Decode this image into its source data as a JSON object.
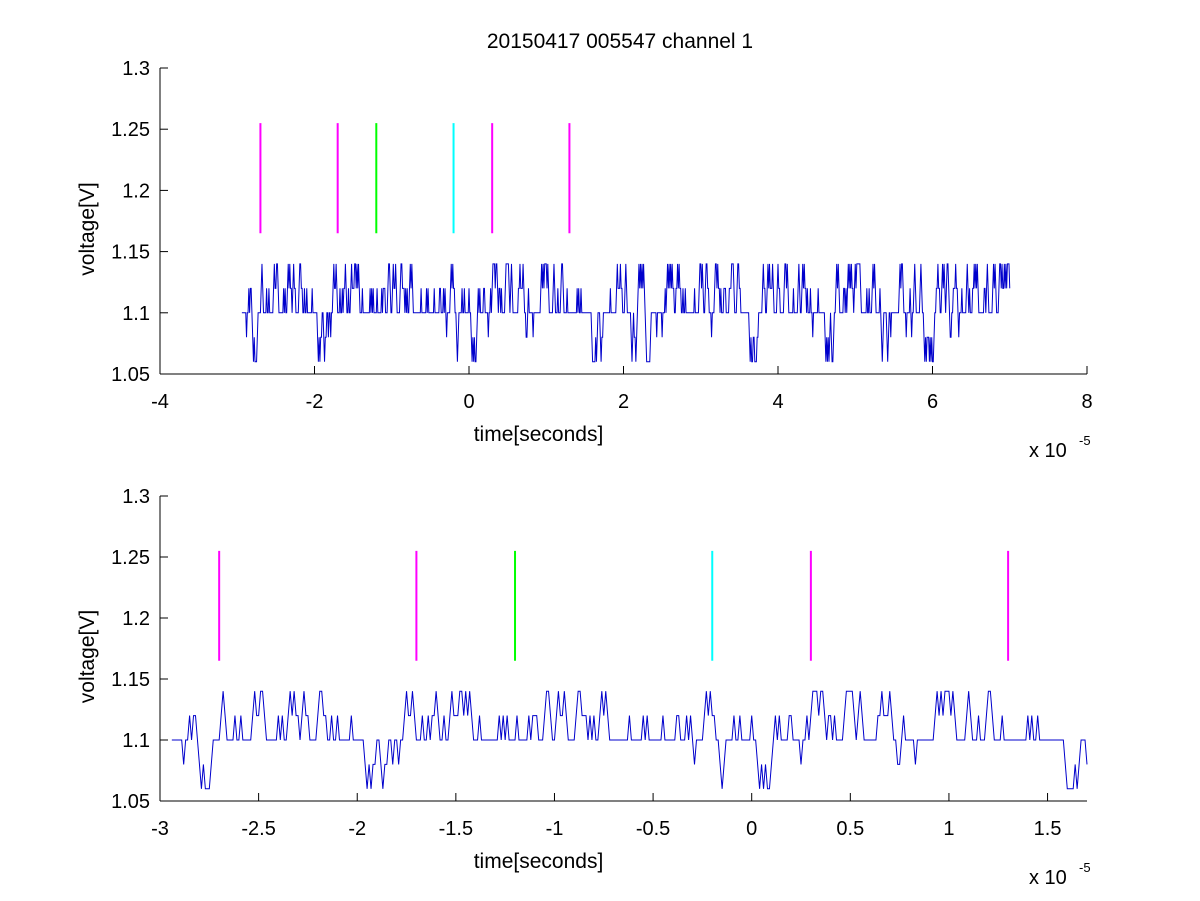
{
  "figure": {
    "title": "20150417 005547 channel 1"
  },
  "chart_data": [
    {
      "type": "line",
      "title": "20150417 005547 channel 1",
      "xlabel": "time[seconds]",
      "ylabel": "voltage[V]",
      "x_exponent_label": "x 10",
      "x_exponent_power": "-5",
      "xlim": [
        -4,
        8
      ],
      "ylim": [
        1.05,
        1.3
      ],
      "xticks": [
        -4,
        -2,
        0,
        2,
        4,
        6,
        8
      ],
      "xtick_labels": [
        "-4",
        "-2",
        "0",
        "2",
        "4",
        "6",
        "8"
      ],
      "yticks": [
        1.05,
        1.1,
        1.15,
        1.2,
        1.25,
        1.3
      ],
      "ytick_labels": [
        "1.05",
        "1.1",
        "1.15",
        "1.2",
        "1.25",
        "1.3"
      ],
      "grid": false,
      "signal": {
        "color": "#0000cc",
        "x_start": -2.94,
        "x_end": 7.0,
        "levels": [
          1.06,
          1.08,
          1.1,
          1.12,
          1.14
        ],
        "baseline": 1.1
      },
      "markers": [
        {
          "x": -2.7,
          "y0": 1.165,
          "y1": 1.255,
          "color": "#ff00ff"
        },
        {
          "x": -1.7,
          "y0": 1.165,
          "y1": 1.255,
          "color": "#ff00ff"
        },
        {
          "x": -1.2,
          "y0": 1.165,
          "y1": 1.255,
          "color": "#00ff00"
        },
        {
          "x": -0.2,
          "y0": 1.165,
          "y1": 1.255,
          "color": "#00ffff"
        },
        {
          "x": 0.3,
          "y0": 1.165,
          "y1": 1.255,
          "color": "#ff00ff"
        },
        {
          "x": 1.3,
          "y0": 1.165,
          "y1": 1.255,
          "color": "#ff00ff"
        }
      ]
    },
    {
      "type": "line",
      "title": "",
      "xlabel": "time[seconds]",
      "ylabel": "voltage[V]",
      "x_exponent_label": "x 10",
      "x_exponent_power": "-5",
      "xlim": [
        -3.0,
        1.7
      ],
      "ylim": [
        1.05,
        1.3
      ],
      "xticks": [
        -3,
        -2.5,
        -2,
        -1.5,
        -1,
        -0.5,
        0,
        0.5,
        1,
        1.5
      ],
      "xtick_labels": [
        "-3",
        "-2.5",
        "-2",
        "-1.5",
        "-1",
        "-0.5",
        "0",
        "0.5",
        "1",
        "1.5"
      ],
      "yticks": [
        1.05,
        1.1,
        1.15,
        1.2,
        1.25,
        1.3
      ],
      "ytick_labels": [
        "1.05",
        "1.1",
        "1.15",
        "1.2",
        "1.25",
        "1.3"
      ],
      "grid": false,
      "signal": {
        "color": "#0000cc",
        "x_start": -2.94,
        "x_end": 1.7,
        "levels": [
          1.06,
          1.08,
          1.1,
          1.12,
          1.14
        ],
        "baseline": 1.1
      },
      "markers": [
        {
          "x": -2.7,
          "y0": 1.165,
          "y1": 1.255,
          "color": "#ff00ff"
        },
        {
          "x": -1.7,
          "y0": 1.165,
          "y1": 1.255,
          "color": "#ff00ff"
        },
        {
          "x": -1.2,
          "y0": 1.165,
          "y1": 1.255,
          "color": "#00ff00"
        },
        {
          "x": -0.2,
          "y0": 1.165,
          "y1": 1.255,
          "color": "#00ffff"
        },
        {
          "x": 0.3,
          "y0": 1.165,
          "y1": 1.255,
          "color": "#ff00ff"
        },
        {
          "x": 1.3,
          "y0": 1.165,
          "y1": 1.255,
          "color": "#ff00ff"
        }
      ]
    }
  ]
}
